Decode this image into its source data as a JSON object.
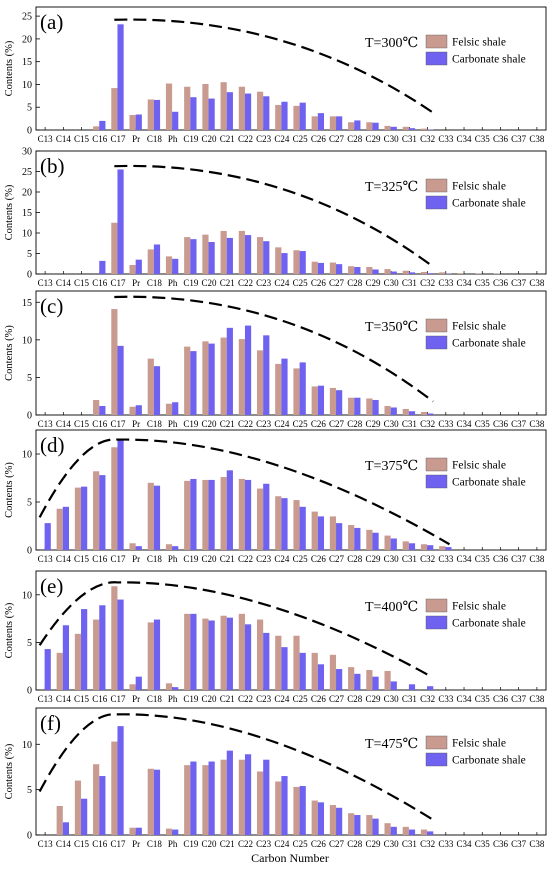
{
  "figure": {
    "xlabel": "Carbon Number",
    "ylabel": "Contents (%)"
  },
  "legend_entries": [
    "Felsic shale",
    "Carbonate shale"
  ],
  "colors": {
    "felsic": "#c99a8f",
    "carbonate": "#6f62f0",
    "axis": "#000000",
    "envelope": "#000000"
  },
  "chart_data": [
    {
      "type": "bar",
      "panel": "(a)",
      "temperature": "T=300℃",
      "categories": [
        "C13",
        "C14",
        "C15",
        "C16",
        "C17",
        "Pr",
        "C18",
        "Ph",
        "C19",
        "C20",
        "C21",
        "C22",
        "C23",
        "C24",
        "C25",
        "C26",
        "C27",
        "C28",
        "C29",
        "C30",
        "C31",
        "C32",
        "C33",
        "C34",
        "C35",
        "C36",
        "C37",
        "C38"
      ],
      "series": [
        {
          "name": "Felsic shale",
          "values": [
            0,
            0,
            0,
            0.8,
            9.2,
            3.3,
            6.7,
            10.2,
            9.5,
            10.1,
            10.5,
            9.5,
            8.4,
            5.5,
            5.3,
            3.0,
            3.0,
            1.7,
            1.7,
            0.9,
            0.7,
            0.3,
            0,
            0,
            0,
            0,
            0,
            0
          ]
        },
        {
          "name": "Carbonate shale",
          "values": [
            0,
            0,
            0,
            2.0,
            23.2,
            3.4,
            6.6,
            4.0,
            7.2,
            6.9,
            8.3,
            8.0,
            7.4,
            6.2,
            6.0,
            3.7,
            3.0,
            2.1,
            1.6,
            0.7,
            0.4,
            0.1,
            0,
            0,
            0,
            0,
            0,
            0
          ]
        }
      ],
      "yticks": [
        0,
        5,
        10,
        15,
        20,
        25
      ],
      "ylim": [
        0,
        27
      ],
      "envelope": {
        "x_start": "C17",
        "x_end": "C32",
        "y_start": 24.2,
        "y_end": 3.8
      }
    },
    {
      "type": "bar",
      "panel": "(b)",
      "temperature": "T=325℃",
      "categories": [
        "C13",
        "C14",
        "C15",
        "C16",
        "C17",
        "Pr",
        "C18",
        "Ph",
        "C19",
        "C20",
        "C21",
        "C22",
        "C23",
        "C24",
        "C25",
        "C26",
        "C27",
        "C28",
        "C29",
        "C30",
        "C31",
        "C32",
        "C33",
        "C34",
        "C35",
        "C36",
        "C37",
        "C38"
      ],
      "series": [
        {
          "name": "Felsic shale",
          "values": [
            0,
            0,
            0,
            0,
            12.5,
            2.2,
            6.0,
            4.3,
            9.0,
            9.6,
            10.5,
            10.5,
            9.0,
            6.5,
            5.8,
            3.0,
            2.8,
            1.9,
            1.7,
            1.2,
            0.8,
            0.5,
            0.4,
            0.2,
            0.1,
            0.1,
            0,
            0
          ]
        },
        {
          "name": "Carbonate shale",
          "values": [
            0,
            0,
            0,
            3.2,
            25.5,
            3.5,
            7.2,
            3.7,
            8.5,
            7.8,
            8.8,
            9.5,
            8.0,
            5.1,
            5.6,
            2.7,
            2.4,
            1.7,
            1.1,
            0.6,
            0.4,
            0.2,
            0.1,
            0,
            0,
            0,
            0,
            0
          ]
        }
      ],
      "yticks": [
        0,
        5,
        10,
        15,
        20,
        25,
        30
      ],
      "ylim": [
        0,
        30
      ],
      "envelope": {
        "x_start": "C17",
        "x_end": "C32",
        "y_start": 26.3,
        "y_end": 1.8
      }
    },
    {
      "type": "bar",
      "panel": "(c)",
      "temperature": "T=350℃",
      "categories": [
        "C13",
        "C14",
        "C15",
        "C16",
        "C17",
        "Pr",
        "C18",
        "Ph",
        "C19",
        "C20",
        "C21",
        "C22",
        "C23",
        "C24",
        "C25",
        "C26",
        "C27",
        "C28",
        "C29",
        "C30",
        "C31",
        "C32",
        "C33",
        "C34",
        "C35",
        "C36",
        "C37",
        "C38"
      ],
      "series": [
        {
          "name": "Felsic shale",
          "values": [
            0,
            0,
            0,
            2.0,
            14.1,
            1.1,
            7.5,
            1.5,
            9.1,
            9.8,
            10.3,
            10.1,
            8.6,
            6.8,
            6.2,
            3.8,
            3.6,
            2.3,
            2.2,
            1.2,
            0.8,
            0.4,
            0,
            0,
            0,
            0,
            0,
            0
          ]
        },
        {
          "name": "Carbonate shale",
          "values": [
            0,
            0,
            0,
            1.2,
            9.2,
            1.3,
            6.5,
            1.7,
            8.5,
            9.5,
            11.6,
            11.9,
            10.6,
            7.5,
            7.0,
            3.9,
            3.3,
            2.3,
            2.0,
            1.0,
            0.5,
            0.2,
            0,
            0,
            0,
            0,
            0,
            0
          ]
        }
      ],
      "yticks": [
        0,
        5,
        10,
        15
      ],
      "ylim": [
        0,
        16.5
      ],
      "envelope": {
        "x_start": "C17",
        "x_end": "C32",
        "y_start": 15.7,
        "y_end": 1.8
      }
    },
    {
      "type": "bar",
      "panel": "(d)",
      "temperature": "T=375℃",
      "categories": [
        "C13",
        "C14",
        "C15",
        "C16",
        "C17",
        "Pr",
        "C18",
        "Ph",
        "C19",
        "C20",
        "C21",
        "C22",
        "C23",
        "C24",
        "C25",
        "C26",
        "C27",
        "C28",
        "C29",
        "C30",
        "C31",
        "C32",
        "C33",
        "C34",
        "C35",
        "C36",
        "C37",
        "C38"
      ],
      "series": [
        {
          "name": "Felsic shale",
          "values": [
            0,
            4.3,
            6.5,
            8.2,
            10.7,
            0.7,
            7.0,
            0.6,
            7.2,
            7.3,
            7.6,
            7.4,
            6.4,
            5.6,
            5.2,
            4.0,
            3.5,
            2.6,
            2.1,
            1.5,
            0.9,
            0.6,
            0.4,
            0,
            0,
            0,
            0,
            0
          ]
        },
        {
          "name": "Carbonate shale",
          "values": [
            2.8,
            4.5,
            6.6,
            7.8,
            11.5,
            0.4,
            6.7,
            0.4,
            7.4,
            7.3,
            8.3,
            7.3,
            6.9,
            5.4,
            4.5,
            3.5,
            2.8,
            2.3,
            1.8,
            1.2,
            0.7,
            0.5,
            0.3,
            0,
            0,
            0,
            0,
            0
          ]
        }
      ],
      "yticks": [
        0,
        5,
        10
      ],
      "ylim": [
        0,
        12.5
      ],
      "envelope": {
        "x_start": "C13",
        "x_peak": "C17",
        "x_end": "C33",
        "y_start": 3.4,
        "y_peak": 11.5,
        "y_end": 0.6
      }
    },
    {
      "type": "bar",
      "panel": "(e)",
      "temperature": "T=400℃",
      "categories": [
        "C13",
        "C14",
        "C15",
        "C16",
        "C17",
        "Pr",
        "C18",
        "Ph",
        "C19",
        "C20",
        "C21",
        "C22",
        "C23",
        "C24",
        "C25",
        "C26",
        "C27",
        "C28",
        "C29",
        "C30",
        "C31",
        "C32",
        "C33",
        "C34",
        "C35",
        "C36",
        "C37",
        "C38"
      ],
      "series": [
        {
          "name": "Felsic shale",
          "values": [
            0,
            3.9,
            5.9,
            7.4,
            10.9,
            0.6,
            7.1,
            0.7,
            8.0,
            7.5,
            7.8,
            8.0,
            7.4,
            5.7,
            5.7,
            3.9,
            3.7,
            2.4,
            2.1,
            2.0,
            0,
            0,
            0,
            0,
            0,
            0,
            0,
            0
          ]
        },
        {
          "name": "Carbonate shale",
          "values": [
            4.3,
            6.8,
            8.5,
            8.9,
            9.5,
            1.4,
            7.4,
            0.3,
            8.0,
            7.3,
            7.6,
            6.9,
            6.0,
            4.5,
            3.9,
            2.7,
            2.2,
            1.7,
            1.4,
            0.9,
            0.6,
            0.4,
            0,
            0,
            0,
            0,
            0,
            0
          ]
        }
      ],
      "yticks": [
        0,
        5,
        10
      ],
      "ylim": [
        0,
        12.5
      ],
      "envelope": {
        "x_start": "C13",
        "x_peak": "C17",
        "x_end": "C32",
        "y_start": 4.7,
        "y_peak": 11.3,
        "y_end": 1.4
      }
    },
    {
      "type": "bar",
      "panel": "(f)",
      "temperature": "T=475℃",
      "categories": [
        "C13",
        "C14",
        "C15",
        "C16",
        "C17",
        "Pr",
        "C18",
        "Ph",
        "C19",
        "C20",
        "C21",
        "C22",
        "C23",
        "C24",
        "C25",
        "C26",
        "C27",
        "C28",
        "C29",
        "C30",
        "C31",
        "C32",
        "C33",
        "C34",
        "C35",
        "C36",
        "C37",
        "C38"
      ],
      "series": [
        {
          "name": "Felsic shale",
          "values": [
            0,
            3.2,
            6.0,
            7.8,
            10.3,
            0.8,
            7.3,
            0.7,
            7.7,
            7.7,
            8.3,
            8.3,
            7.0,
            5.9,
            5.3,
            3.8,
            3.3,
            2.4,
            2.2,
            1.3,
            0.9,
            0.6,
            0,
            0,
            0,
            0,
            0,
            0
          ]
        },
        {
          "name": "Carbonate shale",
          "values": [
            0,
            1.4,
            4.0,
            6.5,
            12.0,
            0.8,
            7.2,
            0.6,
            8.1,
            8.1,
            9.3,
            8.9,
            8.3,
            6.5,
            5.4,
            3.6,
            3.0,
            2.2,
            1.8,
            0.9,
            0.6,
            0.4,
            0,
            0,
            0,
            0,
            0,
            0
          ]
        }
      ],
      "yticks": [
        0,
        5,
        10
      ],
      "ylim": [
        0,
        14
      ],
      "envelope": {
        "x_start": "C13",
        "x_peak": "C17",
        "x_end": "C32",
        "y_start": 4.8,
        "y_peak": 13.3,
        "y_end": 1.8
      }
    }
  ]
}
